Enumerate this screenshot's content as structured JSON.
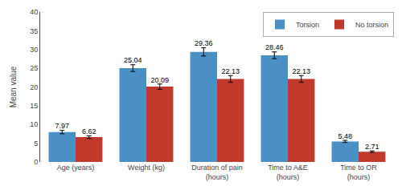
{
  "chart_data": {
    "type": "bar",
    "categories": [
      "Age (years)",
      "Weight (kg)",
      "Duration of pain\n(hours)",
      "Time to A&E\n(hours)",
      "Time to OR\n(hours)"
    ],
    "series": [
      {
        "name": "Torsion",
        "color": "#4A90C4",
        "values": [
          7.97,
          25.04,
          29.36,
          28.46,
          5.48
        ],
        "errors": [
          0.45,
          0.9,
          1.1,
          0.9,
          0.28
        ]
      },
      {
        "name": "No torsion",
        "color": "#C0392B",
        "values": [
          6.62,
          20.09,
          22.13,
          22.13,
          2.71
        ],
        "errors": [
          0.35,
          0.7,
          0.9,
          0.9,
          0.22
        ]
      }
    ],
    "ylabel": "Mean value",
    "ylim": [
      0,
      40
    ],
    "yticks": [
      0,
      5,
      10,
      15,
      20,
      25,
      30,
      35,
      40
    ],
    "legend": "upper right",
    "data_labels": true,
    "grid": false
  }
}
